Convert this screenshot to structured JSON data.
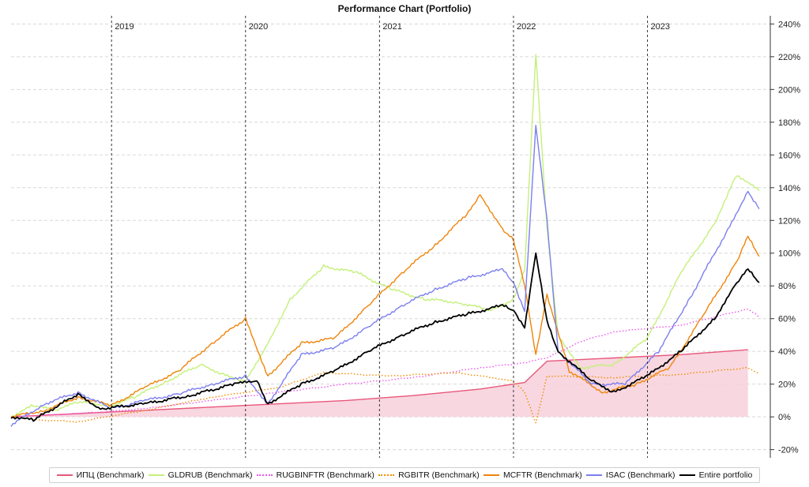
{
  "chart_data": {
    "type": "line",
    "title": "Performance Chart (Portfolio)",
    "xlabel": "",
    "ylabel": "",
    "y_axis_position": "right",
    "ylim": [
      -25,
      245
    ],
    "yticks": [
      -20,
      0,
      20,
      40,
      60,
      80,
      100,
      120,
      140,
      160,
      180,
      200,
      220,
      240
    ],
    "ytick_labels": [
      "-20%",
      "0%",
      "20%",
      "40%",
      "60%",
      "80%",
      "100%",
      "120%",
      "140%",
      "160%",
      "180%",
      "200%",
      "220%",
      "240%"
    ],
    "xlim": [
      "2018-04",
      "2023-12"
    ],
    "year_markers": [
      {
        "date": "2019-01",
        "label": "2019"
      },
      {
        "date": "2020-01",
        "label": "2020"
      },
      {
        "date": "2021-01",
        "label": "2021"
      },
      {
        "date": "2022-01",
        "label": "2022"
      },
      {
        "date": "2023-01",
        "label": "2023"
      }
    ],
    "grid": true,
    "legend_position": "bottom",
    "series": [
      {
        "name": "ИПЦ (Benchmark)",
        "color": "#e8577a",
        "style": "solid",
        "fill": "#f7d0da",
        "points": [
          [
            "2018-04",
            0
          ],
          [
            "2018-10",
            2
          ],
          [
            "2019-04",
            4
          ],
          [
            "2019-10",
            6
          ],
          [
            "2020-04",
            8
          ],
          [
            "2020-10",
            10
          ],
          [
            "2021-04",
            13
          ],
          [
            "2021-10",
            17
          ],
          [
            "2022-02",
            21
          ],
          [
            "2022-04",
            34
          ],
          [
            "2022-10",
            36
          ],
          [
            "2023-04",
            38
          ],
          [
            "2023-10",
            41
          ]
        ]
      },
      {
        "name": "GLDRUB (Benchmark)",
        "color": "#c4f07a",
        "style": "solid",
        "points": [
          [
            "2018-04",
            0
          ],
          [
            "2018-06",
            7
          ],
          [
            "2018-08",
            4
          ],
          [
            "2018-10",
            9
          ],
          [
            "2019-01",
            7
          ],
          [
            "2019-03",
            12
          ],
          [
            "2019-06",
            22
          ],
          [
            "2019-09",
            32
          ],
          [
            "2019-11",
            26
          ],
          [
            "2020-01",
            22
          ],
          [
            "2020-03",
            45
          ],
          [
            "2020-05",
            72
          ],
          [
            "2020-08",
            92
          ],
          [
            "2020-11",
            88
          ],
          [
            "2021-02",
            78
          ],
          [
            "2021-05",
            72
          ],
          [
            "2021-08",
            70
          ],
          [
            "2021-11",
            65
          ],
          [
            "2022-01",
            72
          ],
          [
            "2022-02",
            90
          ],
          [
            "2022-03",
            222
          ],
          [
            "2022-04",
            115
          ],
          [
            "2022-05",
            50
          ],
          [
            "2022-07",
            30
          ],
          [
            "2022-10",
            32
          ],
          [
            "2023-01",
            48
          ],
          [
            "2023-04",
            88
          ],
          [
            "2023-07",
            118
          ],
          [
            "2023-09",
            148
          ],
          [
            "2023-11",
            138
          ]
        ]
      },
      {
        "name": "RUGBINFTR (Benchmark)",
        "color": "#ee55ee",
        "style": "dotted",
        "points": [
          [
            "2018-04",
            0
          ],
          [
            "2018-10",
            2
          ],
          [
            "2019-04",
            5
          ],
          [
            "2019-10",
            10
          ],
          [
            "2020-04",
            15
          ],
          [
            "2020-10",
            20
          ],
          [
            "2021-04",
            24
          ],
          [
            "2021-10",
            30
          ],
          [
            "2022-02",
            33
          ],
          [
            "2022-04",
            36
          ],
          [
            "2022-07",
            46
          ],
          [
            "2022-10",
            52
          ],
          [
            "2023-04",
            56
          ],
          [
            "2023-10",
            66
          ],
          [
            "2023-11",
            61
          ]
        ]
      },
      {
        "name": "RGBITR (Benchmark)",
        "color": "#f08c00",
        "style": "dotted",
        "points": [
          [
            "2018-04",
            0
          ],
          [
            "2018-07",
            -2
          ],
          [
            "2018-10",
            -3
          ],
          [
            "2019-04",
            4
          ],
          [
            "2019-10",
            12
          ],
          [
            "2020-04",
            18
          ],
          [
            "2020-08",
            27
          ],
          [
            "2021-02",
            25
          ],
          [
            "2021-08",
            27
          ],
          [
            "2022-01",
            22
          ],
          [
            "2022-02",
            15
          ],
          [
            "2022-03",
            -4
          ],
          [
            "2022-04",
            25
          ],
          [
            "2022-10",
            24
          ],
          [
            "2023-04",
            26
          ],
          [
            "2023-10",
            30
          ],
          [
            "2023-11",
            26
          ]
        ]
      },
      {
        "name": "MCFTR (Benchmark)",
        "color": "#f0840a",
        "style": "solid",
        "points": [
          [
            "2018-04",
            0
          ],
          [
            "2018-07",
            4
          ],
          [
            "2018-10",
            12
          ],
          [
            "2019-01",
            7
          ],
          [
            "2019-04",
            18
          ],
          [
            "2019-07",
            28
          ],
          [
            "2019-10",
            45
          ],
          [
            "2020-01",
            60
          ],
          [
            "2020-03",
            25
          ],
          [
            "2020-06",
            45
          ],
          [
            "2020-09",
            48
          ],
          [
            "2020-12",
            68
          ],
          [
            "2021-03",
            88
          ],
          [
            "2021-06",
            105
          ],
          [
            "2021-09",
            125
          ],
          [
            "2021-10",
            136
          ],
          [
            "2021-12",
            115
          ],
          [
            "2022-01",
            108
          ],
          [
            "2022-02",
            80
          ],
          [
            "2022-03",
            38
          ],
          [
            "2022-04",
            75
          ],
          [
            "2022-06",
            28
          ],
          [
            "2022-09",
            15
          ],
          [
            "2022-12",
            20
          ],
          [
            "2023-03",
            30
          ],
          [
            "2023-06",
            62
          ],
          [
            "2023-09",
            95
          ],
          [
            "2023-10",
            110
          ],
          [
            "2023-11",
            98
          ]
        ]
      },
      {
        "name": "ISAC (Benchmark)",
        "color": "#7b7ff0",
        "style": "solid",
        "points": [
          [
            "2018-04",
            -5
          ],
          [
            "2018-07",
            8
          ],
          [
            "2018-10",
            15
          ],
          [
            "2019-01",
            5
          ],
          [
            "2019-04",
            10
          ],
          [
            "2019-07",
            14
          ],
          [
            "2019-10",
            20
          ],
          [
            "2020-01",
            25
          ],
          [
            "2020-03",
            8
          ],
          [
            "2020-06",
            38
          ],
          [
            "2020-09",
            42
          ],
          [
            "2020-12",
            55
          ],
          [
            "2021-03",
            68
          ],
          [
            "2021-06",
            78
          ],
          [
            "2021-09",
            85
          ],
          [
            "2021-12",
            90
          ],
          [
            "2022-01",
            82
          ],
          [
            "2022-02",
            65
          ],
          [
            "2022-03",
            178
          ],
          [
            "2022-04",
            120
          ],
          [
            "2022-05",
            40
          ],
          [
            "2022-08",
            20
          ],
          [
            "2022-11",
            20
          ],
          [
            "2023-02",
            40
          ],
          [
            "2023-05",
            75
          ],
          [
            "2023-08",
            112
          ],
          [
            "2023-10",
            138
          ],
          [
            "2023-11",
            127
          ]
        ]
      },
      {
        "name": "Entire portfolio",
        "color": "#000000",
        "style": "solid",
        "points": [
          [
            "2018-04",
            0
          ],
          [
            "2018-06",
            -2
          ],
          [
            "2018-10",
            14
          ],
          [
            "2018-12",
            5
          ],
          [
            "2019-04",
            8
          ],
          [
            "2019-08",
            13
          ],
          [
            "2019-12",
            20
          ],
          [
            "2020-02",
            22
          ],
          [
            "2020-03",
            8
          ],
          [
            "2020-06",
            20
          ],
          [
            "2020-09",
            28
          ],
          [
            "2020-12",
            40
          ],
          [
            "2021-03",
            50
          ],
          [
            "2021-06",
            58
          ],
          [
            "2021-09",
            63
          ],
          [
            "2021-12",
            68
          ],
          [
            "2022-01",
            65
          ],
          [
            "2022-02",
            55
          ],
          [
            "2022-03",
            100
          ],
          [
            "2022-04",
            58
          ],
          [
            "2022-05",
            40
          ],
          [
            "2022-08",
            22
          ],
          [
            "2022-10",
            15
          ],
          [
            "2023-01",
            25
          ],
          [
            "2023-04",
            40
          ],
          [
            "2023-07",
            60
          ],
          [
            "2023-09",
            82
          ],
          [
            "2023-10",
            90
          ],
          [
            "2023-11",
            82
          ]
        ]
      }
    ]
  }
}
